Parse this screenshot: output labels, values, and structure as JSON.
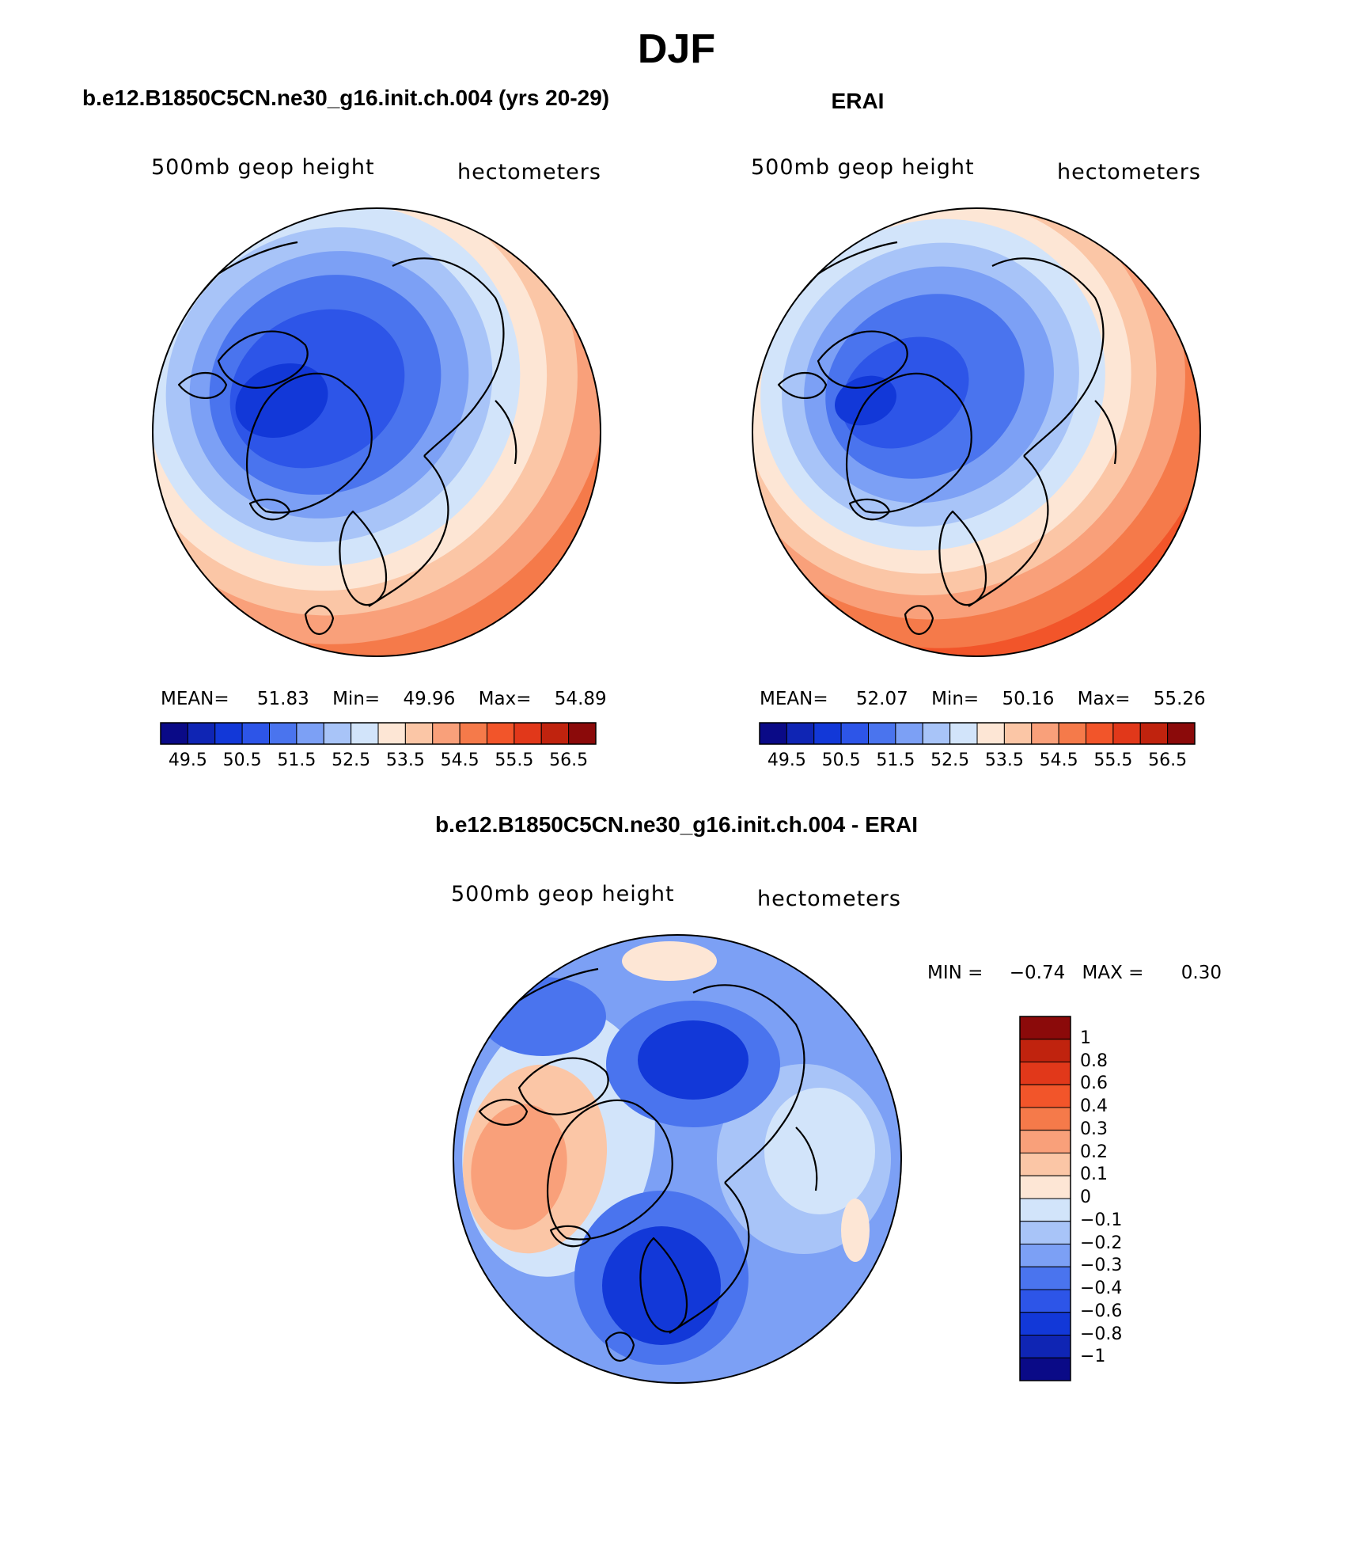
{
  "figure": {
    "title": "DJF"
  },
  "chart_data": [
    {
      "type": "heatmap",
      "panel": "model",
      "title": "b.e12.B1850C5CN.ne30_g16.init.ch.004 (yrs 20-29)",
      "left_label": "500mb geop height",
      "right_label": "hectometers",
      "projection": "north polar stereographic",
      "stats": {
        "mean_label": "MEAN=",
        "mean": "51.83",
        "min_label": "Min=",
        "min": "49.96",
        "max_label": "Max=",
        "max": "54.89"
      },
      "levels": [
        49.5,
        50.5,
        51.5,
        52.5,
        53.5,
        54.5,
        55.5,
        56.5
      ],
      "tick_labels": [
        "49.5",
        "50.5",
        "51.5",
        "52.5",
        "53.5",
        "54.5",
        "55.5",
        "56.5"
      ],
      "colors": [
        "#0a0a87",
        "#0f25b4",
        "#1238d8",
        "#2d55e8",
        "#4a74ee",
        "#7ca0f5",
        "#a8c4f8",
        "#d2e4fa",
        "#fde6d5",
        "#fbc6a6",
        "#f9a07a",
        "#f57a4a",
        "#f2552a",
        "#e1381a",
        "#c0230e",
        "#8b0a0a"
      ]
    },
    {
      "type": "heatmap",
      "panel": "observations",
      "title": "ERAI",
      "left_label": "500mb geop height",
      "right_label": "hectometers",
      "projection": "north polar stereographic",
      "stats": {
        "mean_label": "MEAN=",
        "mean": "52.07",
        "min_label": "Min=",
        "min": "50.16",
        "max_label": "Max=",
        "max": "55.26"
      },
      "levels": [
        49.5,
        50.5,
        51.5,
        52.5,
        53.5,
        54.5,
        55.5,
        56.5
      ],
      "tick_labels": [
        "49.5",
        "50.5",
        "51.5",
        "52.5",
        "53.5",
        "54.5",
        "55.5",
        "56.5"
      ],
      "colors": [
        "#0a0a87",
        "#0f25b4",
        "#1238d8",
        "#2d55e8",
        "#4a74ee",
        "#7ca0f5",
        "#a8c4f8",
        "#d2e4fa",
        "#fde6d5",
        "#fbc6a6",
        "#f9a07a",
        "#f57a4a",
        "#f2552a",
        "#e1381a",
        "#c0230e",
        "#8b0a0a"
      ]
    },
    {
      "type": "heatmap",
      "panel": "difference",
      "title": "b.e12.B1850C5CN.ne30_g16.init.ch.004 - ERAI",
      "left_label": "500mb geop height",
      "right_label": "hectometers",
      "projection": "north polar stereographic",
      "stats": {
        "min_label": "MIN =",
        "min": "−0.74",
        "max_label": "MAX =",
        "max": "0.30"
      },
      "levels": [
        -1,
        -0.8,
        -0.6,
        -0.4,
        -0.3,
        -0.2,
        -0.1,
        0,
        0.1,
        0.2,
        0.3,
        0.4,
        0.6,
        0.8,
        1
      ],
      "tick_labels": [
        "1",
        "0.8",
        "0.6",
        "0.4",
        "0.3",
        "0.2",
        "0.1",
        "0",
        "−0.1",
        "−0.2",
        "−0.3",
        "−0.4",
        "−0.6",
        "−0.8",
        "−1"
      ],
      "colors": [
        "#8b0a0a",
        "#c0230e",
        "#e1381a",
        "#f2552a",
        "#f57a4a",
        "#f9a07a",
        "#fbc6a6",
        "#fde6d5",
        "#d2e4fa",
        "#a8c4f8",
        "#7ca0f5",
        "#4a74ee",
        "#2d55e8",
        "#1238d8",
        "#0f25b4",
        "#0a0a87"
      ]
    }
  ]
}
